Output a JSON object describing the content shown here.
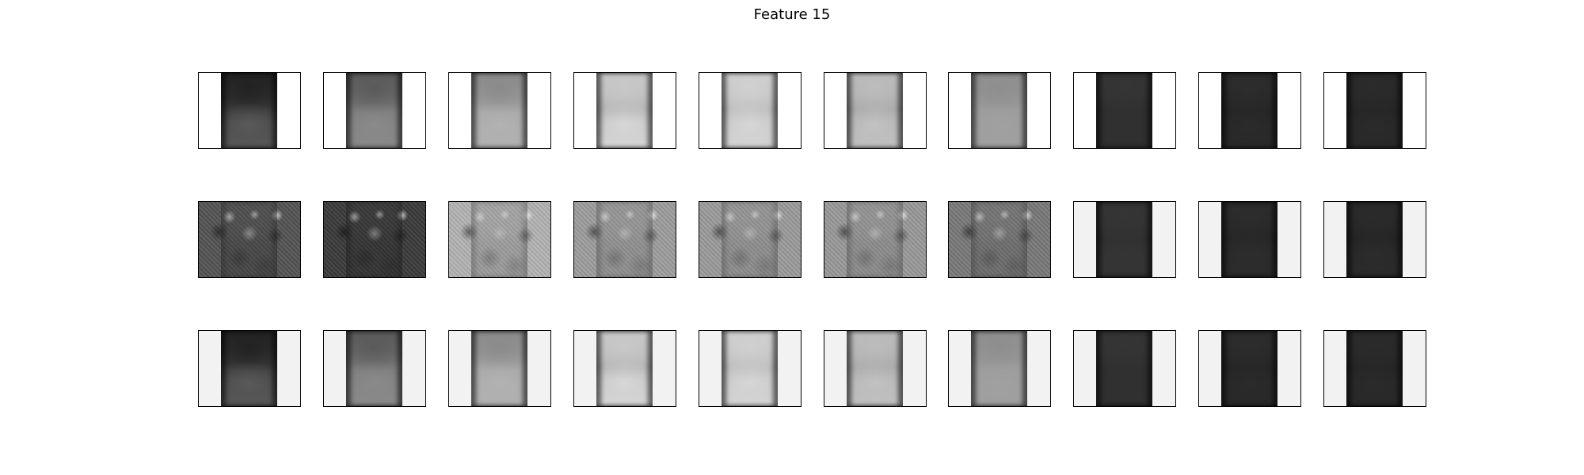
{
  "figure": {
    "title": "Feature 15"
  },
  "rows": [
    {
      "name": "row-1",
      "panels": [
        {
          "bg": "#ffffff",
          "top": "#222222",
          "mid": "#3a3a3a",
          "bot": "#5a5a5a",
          "noise": false
        },
        {
          "bg": "#ffffff",
          "top": "#5a5a5a",
          "mid": "#7a7a7a",
          "bot": "#8a8a8a",
          "noise": false
        },
        {
          "bg": "#ffffff",
          "top": "#8a8a8a",
          "mid": "#a6a6a6",
          "bot": "#b2b2b2",
          "noise": false
        },
        {
          "bg": "#ffffff",
          "top": "#c8c8c8",
          "mid": "#b4b4b4",
          "bot": "#d8d8d8",
          "noise": false
        },
        {
          "bg": "#ffffff",
          "top": "#d0d0d0",
          "mid": "#bcbcbc",
          "bot": "#d6d6d6",
          "noise": false
        },
        {
          "bg": "#ffffff",
          "top": "#bcbcbc",
          "mid": "#a8a8a8",
          "bot": "#c2c2c2",
          "noise": false
        },
        {
          "bg": "#ffffff",
          "top": "#8e8e8e",
          "mid": "#9c9c9c",
          "bot": "#a0a0a0",
          "noise": false
        },
        {
          "bg": "#ffffff",
          "top": "#353535",
          "mid": "#2f2f2f",
          "bot": "#303030",
          "noise": false
        },
        {
          "bg": "#ffffff",
          "top": "#2c2c2c",
          "mid": "#252525",
          "bot": "#2a2a2a",
          "noise": false
        },
        {
          "bg": "#ffffff",
          "top": "#2b2b2b",
          "mid": "#252525",
          "bot": "#2a2a2a",
          "noise": false
        }
      ]
    },
    {
      "name": "row-2",
      "panels": [
        {
          "bg": "#555555",
          "top": "#4a4a4a",
          "mid": "#3c3c3c",
          "bot": "#333333",
          "noise": true
        },
        {
          "bg": "#3c3c3c",
          "top": "#393939",
          "mid": "#2e2e2e",
          "bot": "#2a2a2a",
          "noise": true
        },
        {
          "bg": "#b4b4b4",
          "top": "#8c8c8c",
          "mid": "#7c7c7c",
          "bot": "#727272",
          "noise": true
        },
        {
          "bg": "#9e9e9e",
          "top": "#8a8a8a",
          "mid": "#7e7e7e",
          "bot": "#767676",
          "noise": true
        },
        {
          "bg": "#9c9c9c",
          "top": "#8a8a8a",
          "mid": "#7c7c7c",
          "bot": "#747474",
          "noise": true
        },
        {
          "bg": "#9a9a9a",
          "top": "#8a8a8a",
          "mid": "#7c7c7c",
          "bot": "#747474",
          "noise": true
        },
        {
          "bg": "#7a7a7a",
          "top": "#707070",
          "mid": "#626262",
          "bot": "#5a5a5a",
          "noise": true
        },
        {
          "bg": "#f2f2f2",
          "top": "#353535",
          "mid": "#2f2f2f",
          "bot": "#353535",
          "noise": false
        },
        {
          "bg": "#f2f2f2",
          "top": "#2c2c2c",
          "mid": "#252525",
          "bot": "#2d2d2d",
          "noise": false
        },
        {
          "bg": "#f2f2f2",
          "top": "#2b2b2b",
          "mid": "#242424",
          "bot": "#2c2c2c",
          "noise": false
        }
      ]
    },
    {
      "name": "row-3",
      "panels": [
        {
          "bg": "#f2f2f2",
          "top": "#222222",
          "mid": "#3a3a3a",
          "bot": "#5a5a5a",
          "noise": false
        },
        {
          "bg": "#f2f2f2",
          "top": "#5a5a5a",
          "mid": "#7a7a7a",
          "bot": "#8a8a8a",
          "noise": false
        },
        {
          "bg": "#f2f2f2",
          "top": "#8a8a8a",
          "mid": "#a6a6a6",
          "bot": "#b2b2b2",
          "noise": false
        },
        {
          "bg": "#f2f2f2",
          "top": "#c8c8c8",
          "mid": "#b4b4b4",
          "bot": "#d8d8d8",
          "noise": false
        },
        {
          "bg": "#f2f2f2",
          "top": "#d0d0d0",
          "mid": "#bcbcbc",
          "bot": "#d6d6d6",
          "noise": false
        },
        {
          "bg": "#f2f2f2",
          "top": "#bcbcbc",
          "mid": "#a8a8a8",
          "bot": "#c2c2c2",
          "noise": false
        },
        {
          "bg": "#f2f2f2",
          "top": "#8e8e8e",
          "mid": "#9c9c9c",
          "bot": "#a0a0a0",
          "noise": false
        },
        {
          "bg": "#f2f2f2",
          "top": "#353535",
          "mid": "#2f2f2f",
          "bot": "#303030",
          "noise": false
        },
        {
          "bg": "#f2f2f2",
          "top": "#2c2c2c",
          "mid": "#252525",
          "bot": "#2a2a2a",
          "noise": false
        },
        {
          "bg": "#f2f2f2",
          "top": "#2b2b2b",
          "mid": "#252525",
          "bot": "#2a2a2a",
          "noise": false
        }
      ]
    }
  ]
}
